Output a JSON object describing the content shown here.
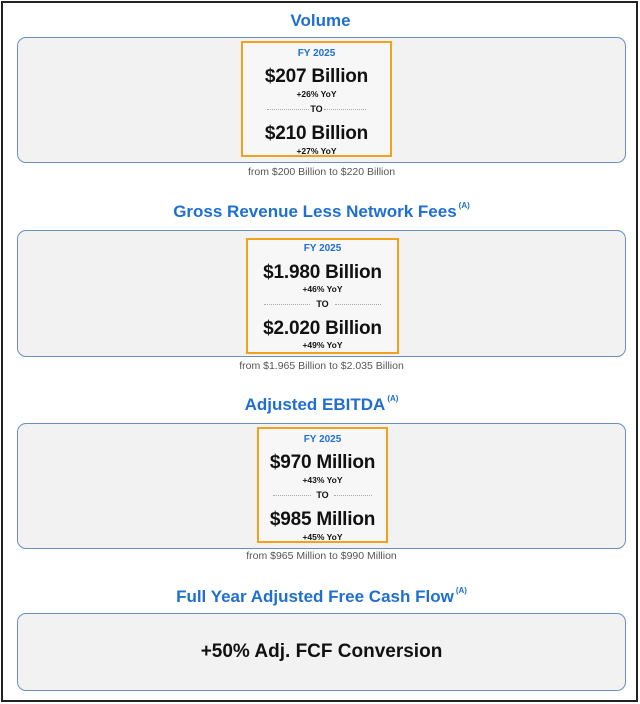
{
  "sections": [
    {
      "title": "Volume",
      "footnote": "",
      "period": "FY 2025",
      "low_amount": "$207 Billion",
      "low_yoy": "+26% YoY",
      "to_label": "TO",
      "high_amount": "$210 Billion",
      "high_yoy": "+27% YoY",
      "prior_range": "from $200 Billion to $220 Billion"
    },
    {
      "title": "Gross Revenue Less Network Fees",
      "footnote": "(A)",
      "period": "FY 2025",
      "low_amount": "$1.980 Billion",
      "low_yoy": "+46% YoY",
      "to_label": "TO",
      "high_amount": "$2.020 Billion",
      "high_yoy": "+49% YoY",
      "prior_range": "from $1.965 Billion to $2.035 Billion"
    },
    {
      "title": "Adjusted EBITDA",
      "footnote": "(A)",
      "period": "FY 2025",
      "low_amount": "$970 Million",
      "low_yoy": "+43% YoY",
      "to_label": "TO",
      "high_amount": "$985 Million",
      "high_yoy": "+45% YoY",
      "prior_range": "from $965 Million to $990 Million"
    }
  ],
  "fcf": {
    "title": "Full Year Adjusted Free Cash Flow",
    "footnote": "(A)",
    "value": "+50% Adj. FCF Conversion"
  },
  "colors": {
    "title_blue": "#1f6fd1",
    "box_orange": "#f0a21a",
    "panel_gray": "#f2f2f2",
    "panel_border": "#6b8fbf"
  }
}
